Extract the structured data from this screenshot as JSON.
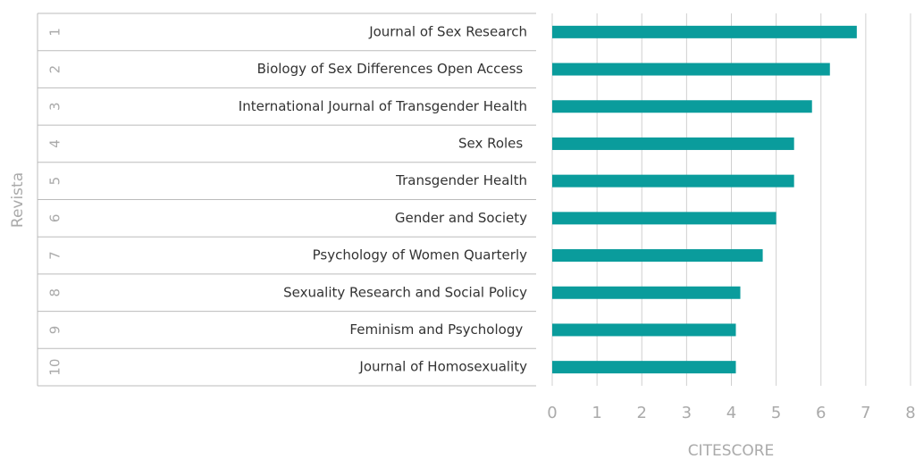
{
  "chart_data": {
    "type": "bar",
    "orientation": "horizontal",
    "x_label": "CITESCORE",
    "y_label": "Revista",
    "ranks": [
      1,
      2,
      3,
      4,
      5,
      6,
      7,
      8,
      9,
      10
    ],
    "categories": [
      "Journal of Sex Research",
      "Biology of Sex Differences Open Access ",
      "International Journal of Transgender Health",
      "Sex Roles ",
      "Transgender Health",
      "Gender and Society",
      "Psychology of Women Quarterly",
      "Sexuality Research and Social Policy",
      "Feminism and Psychology ",
      "Journal of Homosexuality"
    ],
    "values": [
      6.8,
      6.2,
      5.8,
      5.4,
      5.4,
      5.0,
      4.7,
      4.2,
      4.1,
      4.1
    ],
    "color": "#0a9c9c",
    "xlim": [
      0,
      8
    ],
    "xticks": [
      0,
      1,
      2,
      3,
      4,
      5,
      6,
      7,
      8
    ],
    "grid": true
  }
}
